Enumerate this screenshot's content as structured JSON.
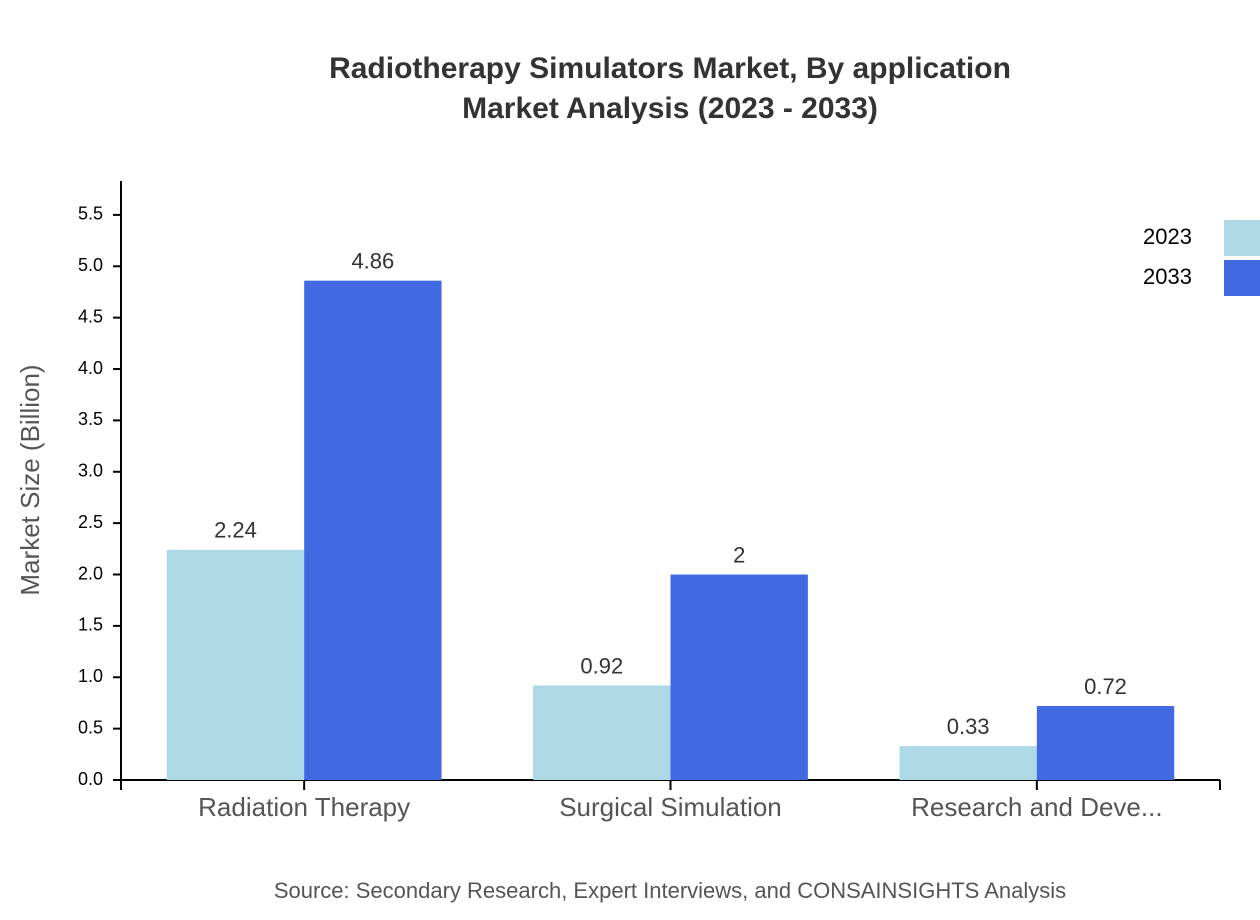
{
  "chart_data": {
    "type": "bar",
    "title": [
      "Radiotherapy Simulators Market, By application",
      "Market Analysis (2023 - 2033)"
    ],
    "y_label": "Market Size (Billion)",
    "source": "Source: Secondary Research, Expert Interviews, and CONSAINSIGHTS Analysis",
    "categories": [
      "Radiation Therapy",
      "Surgical Simulation",
      "Research and Deve..."
    ],
    "series": [
      {
        "name": "2023",
        "color": "#add8e6",
        "values": [
          2.24,
          0.92,
          0.33
        ]
      },
      {
        "name": "2033",
        "color": "#4169e1",
        "values": [
          4.86,
          2,
          0.72
        ]
      }
    ],
    "ylim": [
      0,
      5.83
    ],
    "yticks": [
      {
        "value": 0,
        "label": "0.0"
      },
      0.5,
      {
        "value": 1,
        "label": "1.0"
      },
      1.5,
      {
        "value": 2,
        "label": "2.0"
      },
      2.5,
      {
        "value": 3,
        "label": "3.0"
      },
      3.5,
      {
        "value": 4,
        "label": "4.0"
      },
      4.5,
      {
        "value": 5,
        "label": "5.0"
      },
      5.5
    ],
    "legend": "top-right"
  }
}
